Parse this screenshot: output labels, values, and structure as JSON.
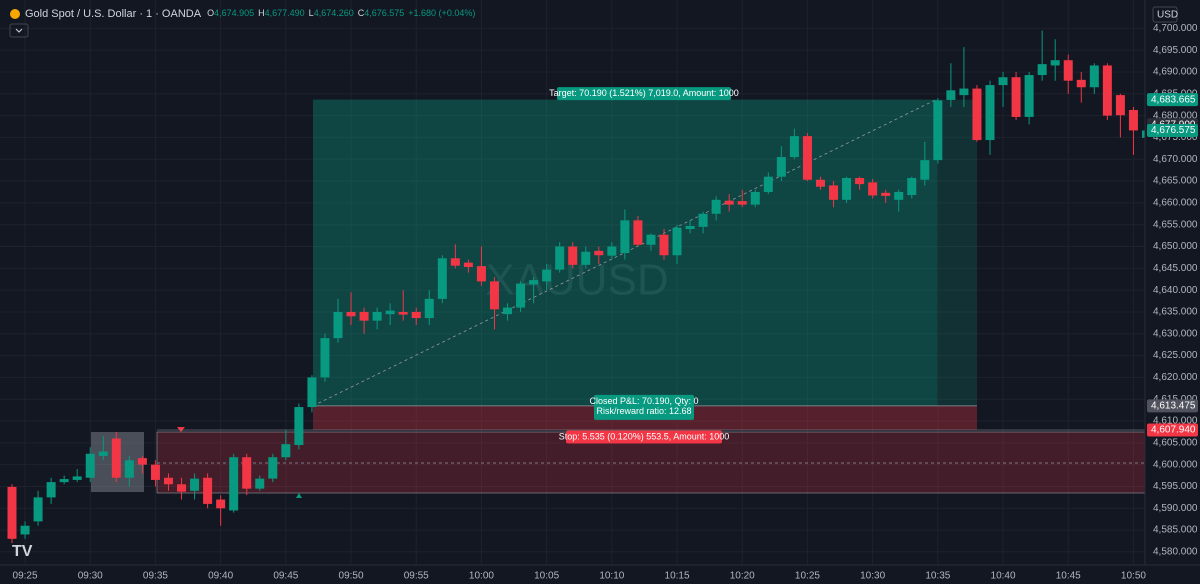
{
  "chart_data": {
    "type": "candlestick",
    "header": {
      "symbol": "Gold Spot / U.S. Dollar · 1 · OANDA",
      "legend": [
        {
          "key": "O",
          "value": "4,674.905"
        },
        {
          "key": "H",
          "value": "4,677.490"
        },
        {
          "key": "L",
          "value": "4,674.260"
        },
        {
          "key": "C",
          "value": "4,676.575"
        }
      ],
      "change": "+1.680 (+0.04%)"
    },
    "currency": "USD",
    "watermark": "XAUUSD",
    "up_color": "#089981",
    "down_color": "#f23645",
    "categories": [
      null,
      "09:25",
      null,
      null,
      null,
      null,
      "09:30",
      null,
      null,
      null,
      null,
      "09:35",
      null,
      null,
      null,
      null,
      "09:40",
      null,
      null,
      null,
      null,
      "09:45",
      null,
      null,
      null,
      null,
      "09:50",
      null,
      null,
      null,
      null,
      "09:55",
      null,
      null,
      null,
      null,
      "10:00",
      null,
      null,
      null,
      null,
      "10:05",
      null,
      null,
      null,
      null,
      "10:10",
      null,
      null,
      null,
      null,
      "10:15",
      null,
      null,
      null,
      null,
      "10:20",
      null,
      null,
      null,
      null,
      "10:25",
      null,
      null,
      null,
      null,
      "10:30",
      null,
      null,
      null,
      null,
      "10:35",
      null,
      null,
      null,
      null,
      "10:40",
      null,
      null,
      null,
      null,
      "10:45",
      null,
      null,
      null,
      null,
      "10:50",
      null
    ],
    "series": [
      {
        "name": "XAUUSD",
        "open": [
          4594.9,
          4584,
          4587,
          4592.5,
          4596,
          4596.5,
          4597,
          4602,
          4606,
          4597,
          4601.5,
          4600,
          4597,
          4595.5,
          4594,
          4597,
          4592,
          4589.5,
          4601.7,
          4594.5,
          4596.8,
          4601.7,
          4604.5,
          4613.2,
          4620,
          4629,
          4635,
          4635,
          4633,
          4634.5,
          4635,
          4635,
          4633.6,
          4638,
          4647.3,
          4646.3,
          4645.5,
          4642,
          4634.5,
          4636,
          4641.3,
          4642,
          4644.7,
          4650,
          4645.8,
          4649,
          4647.9,
          4648.5,
          4656,
          4650.4,
          4652.7,
          4648,
          4654,
          4654.5,
          4657.5,
          4660.5,
          4660.4,
          4659.6,
          4662.5,
          4666,
          4670.5,
          4675.3,
          4665.3,
          4664,
          4660.7,
          4665.7,
          4664.7,
          4662.3,
          4660.7,
          4661.8,
          4665.3,
          4669.8,
          4683.6,
          4684.7,
          4686.2,
          4674.4,
          4687,
          4688.8,
          4679.7,
          4689.3,
          4691.5,
          4692.7,
          4688.2,
          4686.5,
          4691.5,
          4684.7,
          4681.3,
          4674.905
        ],
        "high": [
          4595.5,
          4587,
          4594,
          4597,
          4597.5,
          4599,
          4604,
          4606.5,
          4607.5,
          4602,
          4602,
          4601,
          4598,
          4597,
          4598,
          4598,
          4593,
          4602.5,
          4602.5,
          4597.5,
          4602.5,
          4608,
          4614,
          4620.5,
          4630,
          4638,
          4639.5,
          4636,
          4636,
          4637,
          4640,
          4636,
          4640,
          4648,
          4650.5,
          4647,
          4650,
          4643,
          4637,
          4642,
          4643,
          4646,
          4651,
          4651,
          4650,
          4650,
          4651,
          4658.5,
          4657,
          4653,
          4654,
          4655,
          4656,
          4658,
          4661.5,
          4662,
          4663,
          4663,
          4667,
          4673,
          4677,
          4676,
          4666,
          4665,
          4666,
          4666,
          4665.5,
          4663,
          4663,
          4666,
          4674,
          4684,
          4692,
          4695.7,
          4687,
          4688,
          4690,
          4690,
          4690,
          4699.5,
          4697.5,
          4694,
          4690,
          4692,
          4692,
          4685,
          4682,
          4677.49
        ],
        "low": [
          4582,
          4583,
          4586,
          4591,
          4595.5,
          4596,
          4596,
          4601,
          4596,
          4595,
          4598,
          4595,
          4594,
          4592,
          4592,
          4590,
          4586,
          4589,
          4593,
          4594,
          4596,
          4601,
          4603.5,
          4612,
          4619,
          4628,
          4632,
          4630,
          4631,
          4632,
          4633,
          4632,
          4632,
          4637,
          4645,
          4644,
          4641,
          4631,
          4633,
          4635,
          4637,
          4640,
          4644,
          4645,
          4645,
          4646,
          4647,
          4647,
          4650,
          4649,
          4647,
          4646,
          4653,
          4653,
          4656,
          4658,
          4659,
          4659,
          4662,
          4665,
          4670,
          4665,
          4663,
          4659,
          4660,
          4663,
          4661,
          4660,
          4658,
          4661,
          4664,
          4669,
          4682,
          4682,
          4674,
          4671,
          4682,
          4679,
          4678,
          4688,
          4688,
          4685,
          4683,
          4685,
          4679,
          4675,
          4671,
          4674.26
        ],
        "close": [
          4583,
          4586,
          4592.5,
          4596,
          4596.7,
          4597.3,
          4602.5,
          4603,
          4597,
          4601,
          4600,
          4596.5,
          4595.5,
          4593.8,
          4596.8,
          4591,
          4590,
          4601.7,
          4594.5,
          4596.8,
          4601.7,
          4604.7,
          4613.2,
          4620,
          4629,
          4635,
          4634,
          4633,
          4635,
          4635.3,
          4634.4,
          4633.6,
          4638,
          4647.3,
          4645.6,
          4645.3,
          4642,
          4635.6,
          4636,
          4641.5,
          4642.3,
          4644.7,
          4650,
          4645.8,
          4648.8,
          4648,
          4650,
          4656,
          4650.4,
          4652.7,
          4648,
          4654.3,
          4654.7,
          4657.5,
          4660.7,
          4659.6,
          4659.6,
          4662.5,
          4666,
          4670.5,
          4675.3,
          4665.3,
          4663.7,
          4660.7,
          4665.7,
          4664.3,
          4661.7,
          4661.6,
          4662.5,
          4665.7,
          4669.8,
          4683.5,
          4685.8,
          4686.2,
          4674.4,
          4687,
          4688.8,
          4679.7,
          4689.3,
          4691.8,
          4692.7,
          4688,
          4686.5,
          4691.5,
          4680,
          4680.1,
          4676.6,
          4676.575
        ]
      }
    ],
    "ylim": [
      4577,
      4706.5
    ],
    "yticks": [
      {
        "value": 4580,
        "label": "4,580.000"
      },
      {
        "value": 4585,
        "label": "4,585.000"
      },
      {
        "value": 4590,
        "label": "4,590.000"
      },
      {
        "value": 4595,
        "label": "4,595.000"
      },
      {
        "value": 4600,
        "label": "4,600.000"
      },
      {
        "value": 4605,
        "label": "4,605.000"
      },
      {
        "value": 4610,
        "label": "4,610.000"
      },
      {
        "value": 4615,
        "label": "4,615.000"
      },
      {
        "value": 4620,
        "label": "4,620.000"
      },
      {
        "value": 4625,
        "label": "4,625.000"
      },
      {
        "value": 4630,
        "label": "4,630.000"
      },
      {
        "value": 4635,
        "label": "4,635.000"
      },
      {
        "value": 4640,
        "label": "4,640.000"
      },
      {
        "value": 4645,
        "label": "4,645.000"
      },
      {
        "value": 4650,
        "label": "4,650.000"
      },
      {
        "value": 4655,
        "label": "4,655.000"
      },
      {
        "value": 4660,
        "label": "4,660.000"
      },
      {
        "value": 4665,
        "label": "4,665.000"
      },
      {
        "value": 4670,
        "label": "4,670.000"
      },
      {
        "value": 4675,
        "label": "4,675.000"
      },
      {
        "value": 4680,
        "label": "4,680.000"
      },
      {
        "value": 4685,
        "label": "4,685.000"
      },
      {
        "value": 4690,
        "label": "4,690.000"
      },
      {
        "value": 4695,
        "label": "4,695.000"
      },
      {
        "value": 4700,
        "label": "4,700.000"
      }
    ],
    "grid": true,
    "price_badges": [
      {
        "value": 4683.665,
        "label": "4,683.665",
        "color": "#089981"
      },
      {
        "value": 4677.9,
        "label": "4,677.900",
        "color": "#2a2e39"
      },
      {
        "value": 4676.575,
        "label": "4,676.575",
        "color": "#089981"
      },
      {
        "value": 4613.475,
        "label": "4,613.475",
        "color": "#50535e"
      },
      {
        "value": 4607.94,
        "label": "4,607.940",
        "color": "#f23645"
      }
    ],
    "position": {
      "target_label": "Target: 70.190 (1.521%) 7,019.0, Amount: 1000",
      "pnl_label": "Closed P&L: 70.190, Qty: 0",
      "rr_label": "Risk/reward ratio: 12.68",
      "stop_label": "Stop: 5.535 (0.120%) 553.5, Amount: 1000"
    }
  }
}
